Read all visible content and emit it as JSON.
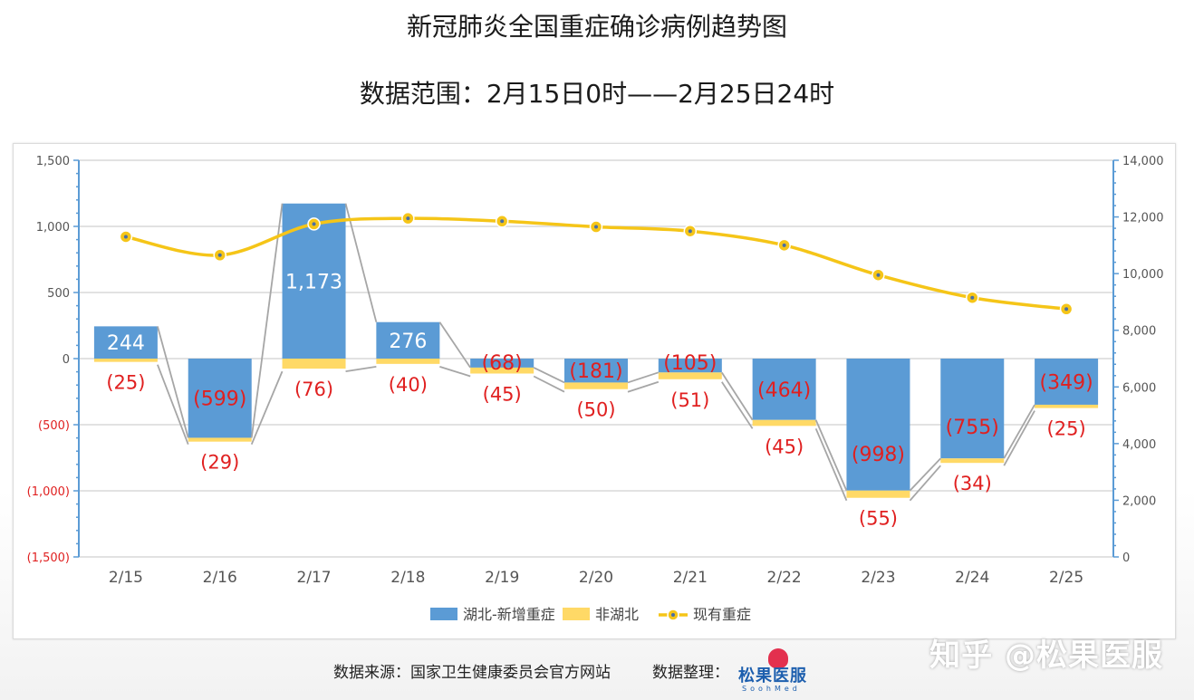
{
  "header": {
    "title": "新冠肺炎全国重症确诊病例趋势图",
    "subtitle": "数据范围：2月15日0时——2月25日24时"
  },
  "footer": {
    "source": "数据来源：国家卫生健康委员会官方网站",
    "organizer": "数据整理：",
    "logo_text": "松果医服",
    "logo_sub": "SoohMed"
  },
  "watermark": "知乎 @松果医服",
  "colors": {
    "hubei": "#5b9bd5",
    "non_hubei": "#ffd966",
    "current": "#f5c518",
    "label_negative": "#e02020",
    "label_bar": "#ffffff",
    "grid": "#d9d9d9",
    "axis": "#5b9bd5"
  },
  "chart_data": {
    "type": "bar",
    "categories": [
      "2/15",
      "2/16",
      "2/17",
      "2/18",
      "2/19",
      "2/20",
      "2/21",
      "2/22",
      "2/23",
      "2/24",
      "2/25"
    ],
    "series": [
      {
        "name": "湖北-新增重症",
        "type": "bar",
        "axis": "left",
        "values": [
          244,
          -599,
          1173,
          276,
          -68,
          -181,
          -105,
          -464,
          -998,
          -755,
          -349
        ],
        "labels": [
          "244",
          "(599)",
          "1,173",
          "276",
          "(68)",
          "(181)",
          "(105)",
          "(464)",
          "(998)",
          "(755)",
          "(349)"
        ]
      },
      {
        "name": "非湖北",
        "type": "bar",
        "axis": "left",
        "values": [
          -25,
          -29,
          -76,
          -40,
          -45,
          -50,
          -51,
          -45,
          -55,
          -34,
          -25
        ],
        "labels": [
          "(25)",
          "(29)",
          "(76)",
          "(40)",
          "(45)",
          "(50)",
          "(51)",
          "(45)",
          "(55)",
          "(34)",
          "(25)"
        ]
      },
      {
        "name": "现有重症",
        "type": "line",
        "axis": "right",
        "values": [
          11300,
          10650,
          11750,
          11950,
          11850,
          11650,
          11500,
          11000,
          9950,
          9150,
          8750
        ]
      }
    ],
    "left_axis": {
      "range": [
        -1500,
        1500
      ],
      "ticks": [
        1500,
        1000,
        500,
        0,
        -500,
        -1000,
        -1500
      ],
      "tick_labels": [
        "1,500",
        "1,000",
        "500",
        "0",
        "(500)",
        "(1,000)",
        "(1,500)"
      ]
    },
    "right_axis": {
      "range": [
        0,
        14000
      ],
      "ticks": [
        14000,
        12000,
        10000,
        8000,
        6000,
        4000,
        2000,
        0
      ],
      "tick_labels": [
        "14,000",
        "12,000",
        "10,000",
        "8,000",
        "6,000",
        "4,000",
        "2,000",
        "0"
      ]
    },
    "grid": true,
    "legend": "bottom"
  }
}
